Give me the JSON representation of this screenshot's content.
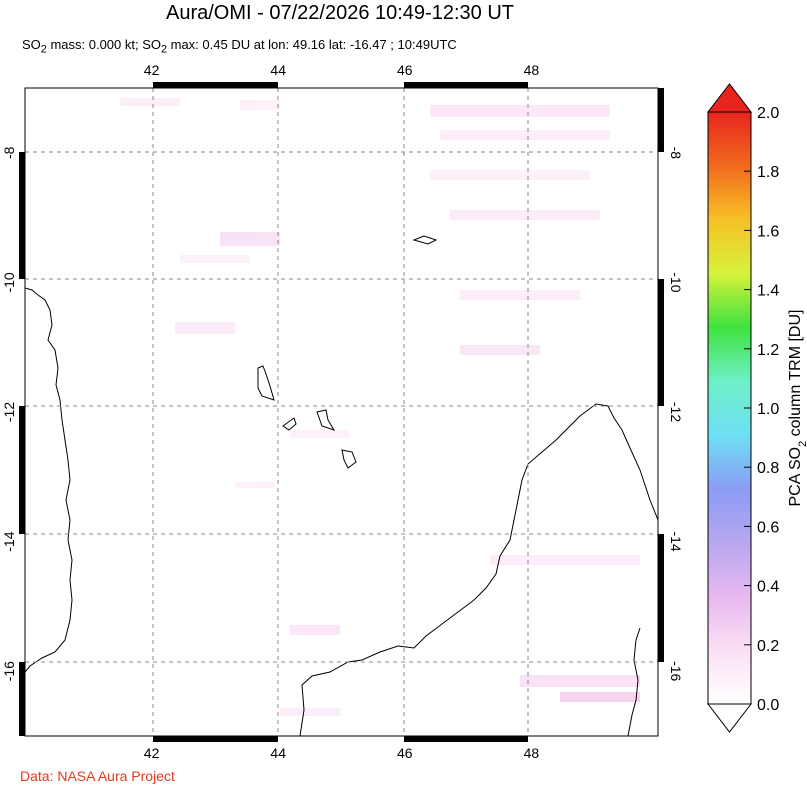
{
  "header": {
    "title": "Aura/OMI - 07/22/2026 10:49-12:30 UT",
    "subtitle_parts": {
      "prefix": "SO",
      "sub1": "2",
      "mid": " mass: 0.000 kt; SO",
      "sub2": "2",
      "suffix": " max: 0.45 DU at lon: 49.16 lat: -16.47 ; 10:49UTC"
    }
  },
  "map": {
    "lon_range": [
      40.0,
      50.0
    ],
    "lat_range": [
      -17.0,
      -7.0
    ],
    "lon_ticks": [
      "42",
      "44",
      "46",
      "48"
    ],
    "lat_ticks": [
      "-8",
      "-10",
      "-12",
      "-14",
      "-16"
    ],
    "gridlines": true,
    "border_color": "#000000",
    "grid_color": "#888888"
  },
  "colorbar": {
    "label_parts": {
      "prefix": "PCA SO",
      "sub": "2",
      "suffix": " column TRM [DU]"
    },
    "ticks": [
      "0.0",
      "0.2",
      "0.4",
      "0.6",
      "0.8",
      "1.0",
      "1.2",
      "1.4",
      "1.6",
      "1.8",
      "2.0"
    ],
    "colors": [
      "#ffffff",
      "#fbe0f5",
      "#e8b8f0",
      "#b7a7ef",
      "#8b9cf5",
      "#6ee0f4",
      "#6ef0c6",
      "#3fe23f",
      "#d6f23a",
      "#f7c126",
      "#f16a1e",
      "#e8241f"
    ],
    "top_arrow_color": "#e8241f",
    "bottom_arrow_color": "#ffffff"
  },
  "footer": {
    "credit": "Data: NASA Aura Project"
  }
}
